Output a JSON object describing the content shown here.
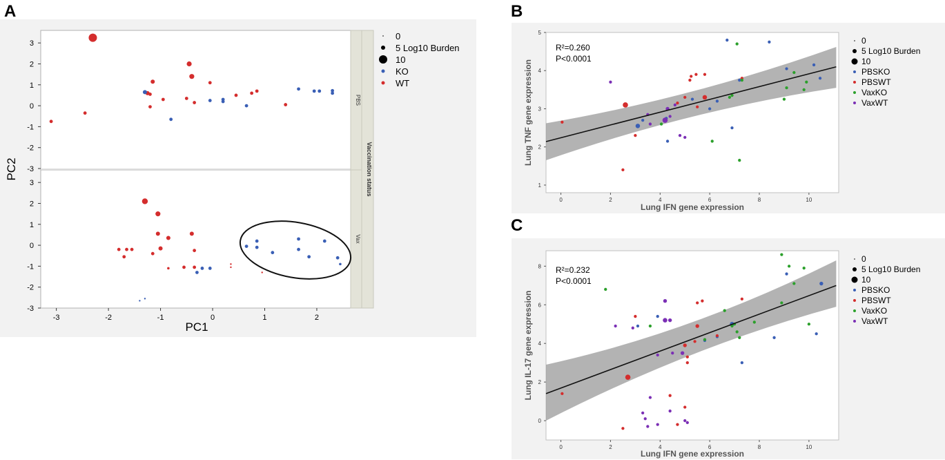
{
  "panels": {
    "a": "A",
    "b": "B",
    "c": "C"
  },
  "colors": {
    "ko": "#3a5fb5",
    "wt": "#d42d2d",
    "pbsko": "#3a5fb5",
    "pbswt": "#d42d2d",
    "vaxko": "#2ca02c",
    "vaxwt": "#7b2fb5",
    "band": "#9a9a9a"
  },
  "chart_data": [
    {
      "type": "scatter",
      "panel": "A",
      "xlabel": "PC1",
      "ylabel": "PC2",
      "facet_label": "Vaccination status",
      "facets": [
        "PBS",
        "Vax"
      ],
      "xlim": [
        -3.3,
        2.65
      ],
      "ylim": [
        -3,
        3.6
      ],
      "xticks": [
        "-3",
        "-2",
        "-1",
        "0",
        "1",
        "2"
      ],
      "yticks": [
        "-3",
        "-2",
        "-1",
        "0",
        "1",
        "2",
        "3"
      ],
      "legend": {
        "size_entries": [
          "0",
          "5 Log10 Burden",
          "10"
        ],
        "color_entries": [
          "KO",
          "WT"
        ]
      },
      "series": [
        {
          "facet": "PBS",
          "name": "WT",
          "points": [
            [
              -3.1,
              -0.75,
              3
            ],
            [
              -2.3,
              3.25,
              9
            ],
            [
              -2.45,
              -0.35,
              3
            ],
            [
              -1.25,
              0.6,
              4
            ],
            [
              -1.15,
              1.15,
              4
            ],
            [
              -1.2,
              0.55,
              3
            ],
            [
              -1.2,
              -0.05,
              3
            ],
            [
              -0.95,
              0.3,
              3
            ],
            [
              -0.45,
              2.0,
              5
            ],
            [
              -0.4,
              1.4,
              5
            ],
            [
              -0.5,
              0.35,
              3
            ],
            [
              -0.35,
              0.15,
              3
            ],
            [
              -0.05,
              1.1,
              3
            ],
            [
              0.45,
              0.5,
              3
            ],
            [
              0.75,
              0.6,
              3
            ],
            [
              0.85,
              0.7,
              3
            ],
            [
              1.4,
              0.05,
              3
            ]
          ]
        },
        {
          "facet": "PBS",
          "name": "KO",
          "points": [
            [
              -1.3,
              0.65,
              4
            ],
            [
              -0.8,
              -0.65,
              3
            ],
            [
              -0.05,
              0.25,
              3
            ],
            [
              0.2,
              0.3,
              3
            ],
            [
              0.2,
              0.2,
              3
            ],
            [
              0.65,
              0.0,
              3
            ],
            [
              1.65,
              0.8,
              3
            ],
            [
              1.95,
              0.7,
              3
            ],
            [
              2.05,
              0.7,
              3
            ],
            [
              2.3,
              0.6,
              3
            ],
            [
              2.3,
              0.72,
              3
            ]
          ]
        },
        {
          "facet": "Vax",
          "name": "WT",
          "points": [
            [
              -1.3,
              2.1,
              6
            ],
            [
              -1.05,
              1.5,
              5
            ],
            [
              -1.05,
              0.55,
              4
            ],
            [
              -1.0,
              -0.15,
              4
            ],
            [
              -0.85,
              0.35,
              4
            ],
            [
              -1.8,
              -0.2,
              3
            ],
            [
              -1.65,
              -0.2,
              3
            ],
            [
              -1.55,
              -0.2,
              3
            ],
            [
              -1.7,
              -0.55,
              3
            ],
            [
              -1.15,
              -0.4,
              3
            ],
            [
              -0.85,
              -1.1,
              2
            ],
            [
              -0.55,
              -1.05,
              3
            ],
            [
              -0.4,
              0.55,
              4
            ],
            [
              -0.35,
              -0.25,
              3
            ],
            [
              -0.35,
              -1.05,
              3
            ],
            [
              0.35,
              -0.9,
              1
            ],
            [
              0.35,
              -1.05,
              1
            ],
            [
              0.95,
              -1.3,
              1
            ]
          ]
        },
        {
          "facet": "Vax",
          "name": "KO",
          "points": [
            [
              -0.3,
              -1.3,
              3
            ],
            [
              -0.2,
              -1.1,
              3
            ],
            [
              -0.05,
              -1.1,
              3
            ],
            [
              0.65,
              -0.05,
              3
            ],
            [
              0.85,
              0.2,
              3
            ],
            [
              0.85,
              -0.1,
              3
            ],
            [
              1.15,
              -0.35,
              3
            ],
            [
              1.65,
              0.3,
              3
            ],
            [
              1.65,
              -0.2,
              3
            ],
            [
              1.85,
              -0.55,
              3
            ],
            [
              2.15,
              0.2,
              3
            ],
            [
              2.4,
              -0.6,
              3
            ],
            [
              2.45,
              -0.9,
              2
            ],
            [
              -1.4,
              -2.65,
              1
            ],
            [
              -1.3,
              -2.55,
              1
            ]
          ]
        }
      ],
      "annotation": "ellipse around Vax KO cluster"
    },
    {
      "type": "scatter",
      "panel": "B",
      "xlabel": "Lung IFN gene expression",
      "ylabel": "Lung TNF gene expression",
      "xlim": [
        -0.6,
        11.2
      ],
      "ylim": [
        0.8,
        5.0
      ],
      "xticks": [
        "0",
        "2",
        "4",
        "6",
        "8",
        "10"
      ],
      "yticks": [
        "1",
        "2",
        "3",
        "4",
        "5"
      ],
      "stats": {
        "r2": "R²=0.260",
        "p": "P<0.0001"
      },
      "fit": {
        "x": [
          -0.6,
          11.1
        ],
        "y": [
          2.14,
          4.1
        ],
        "ci_low": [
          1.65,
          3.55
        ],
        "ci_high": [
          2.62,
          4.62
        ]
      },
      "legend": {
        "size_entries": [
          "0",
          "5 Log10 Burden",
          "10"
        ],
        "color_entries": [
          "PBSKO",
          "PBSWT",
          "VaxKO",
          "VaxWT"
        ]
      },
      "series": [
        {
          "name": "PBSKO",
          "points": [
            [
              3.1,
              2.55,
              5
            ],
            [
              3.3,
              2.7,
              3
            ],
            [
              4.3,
              2.15,
              3
            ],
            [
              4.25,
              2.75,
              3
            ],
            [
              5.3,
              3.25,
              3
            ],
            [
              6.0,
              3.0,
              3
            ],
            [
              6.3,
              3.2,
              3
            ],
            [
              6.7,
              4.8,
              3
            ],
            [
              6.9,
              2.5,
              3
            ],
            [
              7.2,
              3.75,
              3
            ],
            [
              8.4,
              4.75,
              3
            ],
            [
              9.1,
              4.05,
              3
            ],
            [
              10.2,
              4.15,
              3
            ],
            [
              10.45,
              3.8,
              3
            ]
          ]
        },
        {
          "name": "PBSWT",
          "points": [
            [
              0.05,
              2.65,
              3
            ],
            [
              2.6,
              3.1,
              6
            ],
            [
              2.5,
              1.4,
              3
            ],
            [
              3.0,
              2.3,
              3
            ],
            [
              4.7,
              3.15,
              3
            ],
            [
              5.0,
              3.3,
              3
            ],
            [
              5.2,
              3.75,
              3
            ],
            [
              5.25,
              3.85,
              3
            ],
            [
              5.45,
              3.9,
              3
            ],
            [
              5.5,
              3.05,
              3
            ],
            [
              5.8,
              3.9,
              3
            ],
            [
              5.8,
              3.3,
              5
            ],
            [
              7.3,
              3.8,
              3
            ]
          ]
        },
        {
          "name": "VaxKO",
          "points": [
            [
              4.05,
              2.6,
              3
            ],
            [
              6.1,
              2.15,
              3
            ],
            [
              6.8,
              3.3,
              3
            ],
            [
              6.9,
              3.35,
              3
            ],
            [
              7.1,
              4.7,
              3
            ],
            [
              7.2,
              1.65,
              3
            ],
            [
              7.3,
              3.75,
              3
            ],
            [
              9.0,
              3.25,
              3
            ],
            [
              9.1,
              3.55,
              3
            ],
            [
              9.4,
              3.95,
              3
            ],
            [
              9.8,
              3.5,
              3
            ],
            [
              9.9,
              3.7,
              3
            ]
          ]
        },
        {
          "name": "VaxWT",
          "points": [
            [
              2.0,
              3.7,
              3
            ],
            [
              3.5,
              2.85,
              3
            ],
            [
              3.6,
              2.6,
              3
            ],
            [
              4.2,
              2.7,
              6
            ],
            [
              4.3,
              3.0,
              4
            ],
            [
              4.4,
              2.8,
              3
            ],
            [
              4.6,
              3.1,
              3
            ],
            [
              4.8,
              2.3,
              3
            ],
            [
              5.0,
              2.25,
              3
            ]
          ]
        }
      ]
    },
    {
      "type": "scatter",
      "panel": "C",
      "xlabel": "Lung IFN gene expression",
      "ylabel": "Lung IL-17 gene expression",
      "xlim": [
        -0.6,
        11.2
      ],
      "ylim": [
        -1.0,
        8.8
      ],
      "xticks": [
        "0",
        "2",
        "4",
        "6",
        "8",
        "10"
      ],
      "yticks": [
        "0",
        "2",
        "4",
        "6",
        "8"
      ],
      "stats": {
        "r2": "R²=0.232",
        "p": "P<0.0001"
      },
      "fit": {
        "x": [
          -0.6,
          11.1
        ],
        "y": [
          1.4,
          7.0
        ],
        "ci_low": [
          0.0,
          5.9
        ],
        "ci_high": [
          2.9,
          8.3
        ]
      },
      "legend": {
        "size_entries": [
          "0",
          "5 Log10 Burden",
          "10"
        ],
        "color_entries": [
          "PBSKO",
          "PBSWT",
          "VaxKO",
          "VaxWT"
        ]
      },
      "series": [
        {
          "name": "PBSKO",
          "points": [
            [
              3.1,
              4.9,
              3
            ],
            [
              3.9,
              5.4,
              3
            ],
            [
              5.8,
              4.15,
              3
            ],
            [
              6.3,
              4.35,
              3
            ],
            [
              6.9,
              5.0,
              5
            ],
            [
              7.3,
              3.0,
              3
            ],
            [
              8.6,
              4.3,
              3
            ],
            [
              9.1,
              7.6,
              3
            ],
            [
              10.3,
              4.5,
              3
            ],
            [
              10.5,
              7.1,
              4
            ]
          ]
        },
        {
          "name": "PBSWT",
          "points": [
            [
              0.05,
              1.4,
              3
            ],
            [
              2.5,
              -0.4,
              3
            ],
            [
              2.7,
              2.25,
              6
            ],
            [
              3.0,
              5.4,
              3
            ],
            [
              4.4,
              1.3,
              3
            ],
            [
              4.7,
              -0.2,
              3
            ],
            [
              5.0,
              0.7,
              3
            ],
            [
              5.1,
              3.0,
              3
            ],
            [
              5.0,
              3.9,
              4
            ],
            [
              5.1,
              3.3,
              3
            ],
            [
              5.4,
              4.1,
              3
            ],
            [
              5.5,
              4.9,
              4
            ],
            [
              5.5,
              6.1,
              3
            ],
            [
              5.7,
              6.2,
              3
            ],
            [
              6.3,
              4.4,
              3
            ],
            [
              7.3,
              6.3,
              3
            ]
          ]
        },
        {
          "name": "VaxKO",
          "points": [
            [
              1.8,
              6.8,
              3
            ],
            [
              3.6,
              4.9,
              3
            ],
            [
              5.8,
              4.2,
              3
            ],
            [
              6.6,
              5.7,
              3
            ],
            [
              6.9,
              4.9,
              3
            ],
            [
              7.0,
              5.0,
              3
            ],
            [
              7.1,
              4.6,
              3
            ],
            [
              7.2,
              4.3,
              3
            ],
            [
              7.8,
              5.1,
              3
            ],
            [
              8.9,
              6.1,
              3
            ],
            [
              8.9,
              8.6,
              3
            ],
            [
              9.2,
              8.0,
              3
            ],
            [
              9.4,
              7.1,
              3
            ],
            [
              9.8,
              7.9,
              3
            ],
            [
              10.0,
              5.0,
              3
            ]
          ]
        },
        {
          "name": "VaxWT",
          "points": [
            [
              2.2,
              4.9,
              3
            ],
            [
              2.9,
              4.8,
              3
            ],
            [
              3.3,
              0.4,
              3
            ],
            [
              3.4,
              0.1,
              3
            ],
            [
              3.5,
              -0.3,
              3
            ],
            [
              3.6,
              1.2,
              3
            ],
            [
              3.9,
              -0.2,
              3
            ],
            [
              3.9,
              3.4,
              3
            ],
            [
              4.2,
              6.2,
              4
            ],
            [
              4.2,
              5.2,
              5
            ],
            [
              4.4,
              5.2,
              4
            ],
            [
              4.4,
              0.5,
              3
            ],
            [
              4.5,
              3.5,
              3
            ],
            [
              5.0,
              0.0,
              3
            ],
            [
              5.1,
              -0.1,
              3
            ],
            [
              4.9,
              3.5,
              4
            ]
          ]
        }
      ]
    }
  ]
}
